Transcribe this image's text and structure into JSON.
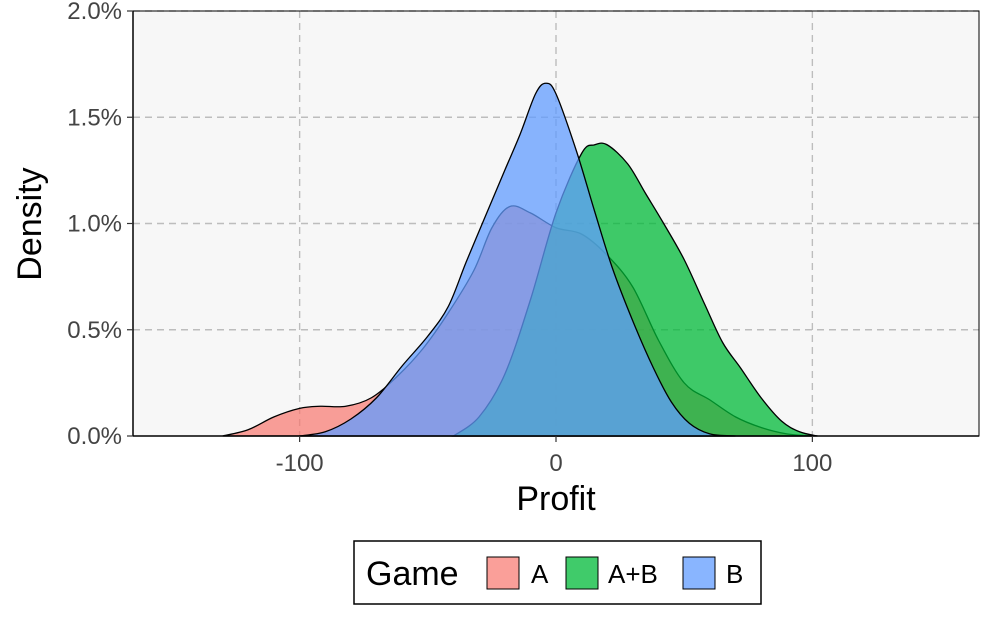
{
  "chart_data": {
    "type": "area",
    "xlabel": "Profit",
    "ylabel": "Density",
    "xlim": [
      -165,
      165
    ],
    "ylim": [
      0,
      0.02
    ],
    "x_ticks": [
      {
        "value": -100,
        "label": "-100"
      },
      {
        "value": 0,
        "label": "0"
      },
      {
        "value": 100,
        "label": "100"
      }
    ],
    "y_ticks": [
      {
        "value": 0,
        "label": "0.0%"
      },
      {
        "value": 0.005,
        "label": "0.5%"
      },
      {
        "value": 0.01,
        "label": "1.0%"
      },
      {
        "value": 0.015,
        "label": "1.5%"
      },
      {
        "value": 0.02,
        "label": "2.0%"
      }
    ],
    "grid": true,
    "legend": {
      "title": "Game",
      "position": "bottom"
    },
    "series": [
      {
        "name": "A",
        "color": "#F8766D",
        "points": [
          [
            -130,
            0
          ],
          [
            -120,
            0.0003
          ],
          [
            -110,
            0.0009
          ],
          [
            -100,
            0.0013
          ],
          [
            -92,
            0.0014
          ],
          [
            -82,
            0.0014
          ],
          [
            -72,
            0.0018
          ],
          [
            -62,
            0.0028
          ],
          [
            -52,
            0.0041
          ],
          [
            -42,
            0.0058
          ],
          [
            -32,
            0.0078
          ],
          [
            -25,
            0.0098
          ],
          [
            -18,
            0.0108
          ],
          [
            -10,
            0.0105
          ],
          [
            0,
            0.0098
          ],
          [
            10,
            0.0095
          ],
          [
            20,
            0.0085
          ],
          [
            30,
            0.007
          ],
          [
            40,
            0.0045
          ],
          [
            50,
            0.0025
          ],
          [
            60,
            0.0017
          ],
          [
            70,
            0.0009
          ],
          [
            80,
            0.0004
          ],
          [
            90,
            0.0001
          ],
          [
            100,
            0
          ]
        ]
      },
      {
        "name": "A+B",
        "color": "#00BA38",
        "points": [
          [
            -40,
            0
          ],
          [
            -30,
            0.0009
          ],
          [
            -20,
            0.0029
          ],
          [
            -10,
            0.0064
          ],
          [
            0,
            0.0105
          ],
          [
            10,
            0.0133
          ],
          [
            15,
            0.0137
          ],
          [
            20,
            0.0137
          ],
          [
            28,
            0.0128
          ],
          [
            35,
            0.0114
          ],
          [
            42,
            0.01
          ],
          [
            50,
            0.0083
          ],
          [
            58,
            0.0062
          ],
          [
            65,
            0.0044
          ],
          [
            72,
            0.0032
          ],
          [
            80,
            0.0018
          ],
          [
            88,
            0.0007
          ],
          [
            95,
            0.0002
          ],
          [
            102,
            0
          ]
        ]
      },
      {
        "name": "B",
        "color": "#619CFF",
        "points": [
          [
            -100,
            0
          ],
          [
            -90,
            0.0002
          ],
          [
            -80,
            0.0008
          ],
          [
            -70,
            0.0018
          ],
          [
            -60,
            0.0033
          ],
          [
            -50,
            0.0047
          ],
          [
            -42,
            0.0061
          ],
          [
            -35,
            0.0082
          ],
          [
            -27,
            0.0105
          ],
          [
            -20,
            0.0125
          ],
          [
            -14,
            0.0142
          ],
          [
            -8,
            0.0161
          ],
          [
            -4,
            0.0166
          ],
          [
            0,
            0.0161
          ],
          [
            8,
            0.0134
          ],
          [
            15,
            0.0106
          ],
          [
            22,
            0.0079
          ],
          [
            30,
            0.0054
          ],
          [
            38,
            0.0032
          ],
          [
            45,
            0.0016
          ],
          [
            52,
            0.0006
          ],
          [
            60,
            0.0001
          ],
          [
            70,
            0
          ]
        ]
      }
    ]
  }
}
